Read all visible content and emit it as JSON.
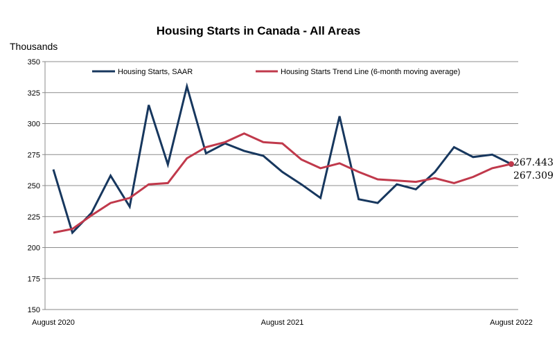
{
  "chart_data": {
    "type": "line",
    "title": "Housing Starts in Canada - All Areas",
    "unit_label": "Thousands",
    "ylim": [
      150,
      350
    ],
    "yticks": [
      150,
      175,
      200,
      225,
      250,
      275,
      300,
      325,
      350
    ],
    "grid": true,
    "legend_position": "top",
    "x_tick_labels": [
      "August 2020",
      "August 2021",
      "August 2022"
    ],
    "x_tick_indices": [
      0,
      12,
      24
    ],
    "series": [
      {
        "name": "Housing Starts, SAAR",
        "color": "#17375e",
        "values": [
          263,
          212,
          228,
          258,
          233,
          315,
          267,
          330,
          276,
          284,
          278,
          274,
          261,
          251,
          240,
          306,
          239,
          236,
          251,
          247,
          261,
          281,
          273,
          275,
          267.309
        ]
      },
      {
        "name": "Housing Starts Trend Line (6-month moving average)",
        "color": "#c0394b",
        "values": [
          212,
          215,
          226,
          236,
          240,
          251,
          252,
          272,
          281,
          285,
          292,
          285,
          284,
          271,
          264,
          268,
          261,
          255,
          254,
          253,
          256,
          252,
          257,
          264,
          267.443
        ]
      }
    ],
    "end_labels": [
      "267.443",
      "267.309"
    ]
  }
}
